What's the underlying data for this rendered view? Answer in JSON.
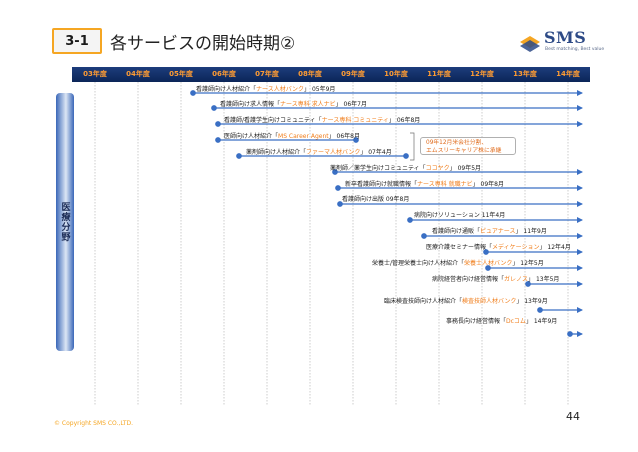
{
  "header": {
    "section_no": "3-1",
    "title": "各サービスの開始時期②",
    "logo_text": "SMS",
    "logo_tagline": "Best matching, Best value"
  },
  "timeline": {
    "years": [
      "03年度",
      "04年度",
      "05年度",
      "06年度",
      "07年度",
      "08年度",
      "09年度",
      "10年度",
      "11年度",
      "12年度",
      "13年度",
      "14年度"
    ]
  },
  "side_label": "医療分野",
  "services": [
    {
      "pre": "看護師向け人材紹介「",
      "hl": "ナース人材バンク",
      "post": "」 05年9月"
    },
    {
      "pre": "看護師向け求人情報「",
      "hl": "ナース専科 求人ナビ",
      "post": "」 06年7月"
    },
    {
      "pre": "看護師/看護学生向けコミュニティ「",
      "hl": "ナース専科 コミュニティ",
      "post": "」 06年8月"
    },
    {
      "pre": "医師向け人材紹介「",
      "hl": "MS Career Agent",
      "post": "」 06年8月"
    },
    {
      "pre": "薬剤師向け人材紹介「",
      "hl": "ファーマ人材バンク",
      "post": "」 07年4月"
    },
    {
      "pre": "薬剤師／薬学生向けコミュニティ「",
      "hl": "ココヤク",
      "post": "」 09年5月"
    },
    {
      "pre": "新卒看護師向け就職情報「",
      "hl": "ナース専科 就職ナビ",
      "post": "」 09年8月"
    },
    {
      "pre": "看護師向け出版 09年8月",
      "hl": "",
      "post": ""
    },
    {
      "pre": "病院向けソリューション 11年4月",
      "hl": "",
      "post": ""
    },
    {
      "pre": "看護師向け通販「",
      "hl": "ピュアナース",
      "post": "」 11年9月"
    },
    {
      "pre": "医療介護セミナー情報「",
      "hl": "メディケーション",
      "post": "」 12年4月"
    },
    {
      "pre": "栄養士/管理栄養士向け人材紹介「",
      "hl": "栄養士人材バンク",
      "post": "」 12年5月"
    },
    {
      "pre": "病院経営者向け経営情報「",
      "hl": "ガレノス",
      "post": "」 13年5月"
    },
    {
      "pre": "臨床検査技師向け人材紹介「",
      "hl": "検査技師人材バンク",
      "post": "」 13年9月"
    },
    {
      "pre": "事務長向け経営情報「",
      "hl": "Dcコム",
      "post": "」 14年9月"
    }
  ],
  "note": {
    "line1": "09年12月米会社分割、",
    "line2": "エムスリーキャリア株に承継"
  },
  "footer": {
    "copyright": "© Copyright SMS CO.,LTD.",
    "page": "44"
  },
  "colors": {
    "accent_orange": "#f07d1a",
    "navy": "#1d3d7c",
    "arrow_blue": "#3a6fc4"
  }
}
